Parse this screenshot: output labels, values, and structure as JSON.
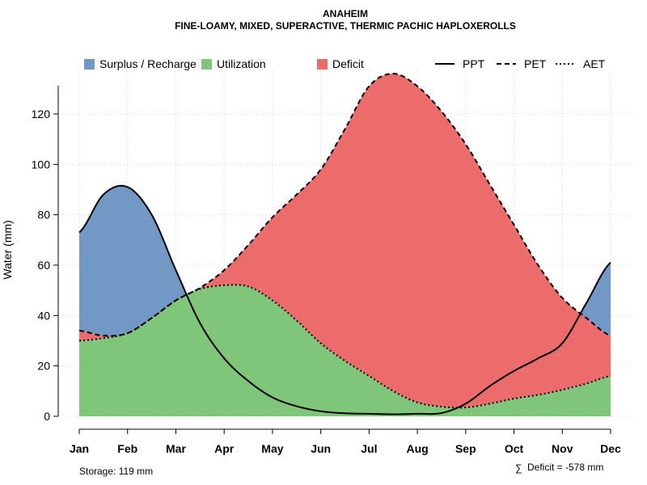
{
  "chart_data": {
    "type": "area",
    "title": "ANAHEIM",
    "subtitle": "FINE-LOAMY, MIXED, SUPERACTIVE, THERMIC PACHIC HAPLOXEROLLS",
    "ylabel": "Water (mm)",
    "xlabel": "",
    "ylim": [
      0,
      137
    ],
    "yticks": [
      0,
      20,
      40,
      60,
      80,
      100,
      120
    ],
    "categories": [
      "Jan",
      "Feb",
      "Mar",
      "Apr",
      "May",
      "Jun",
      "Jul",
      "Aug",
      "Sep",
      "Oct",
      "Nov",
      "Dec"
    ],
    "grid": true,
    "legend": [
      {
        "key": "surplus",
        "label": "Surplus / Recharge",
        "kind": "fill",
        "color": "#7299C6"
      },
      {
        "key": "utilization",
        "label": "Utilization",
        "kind": "fill",
        "color": "#7FC57A"
      },
      {
        "key": "deficit",
        "label": "Deficit",
        "kind": "fill",
        "color": "#EC6B6B"
      },
      {
        "key": "ppt",
        "label": "PPT",
        "kind": "line",
        "dash": "solid"
      },
      {
        "key": "pet",
        "label": "PET",
        "kind": "line",
        "dash": "dashed"
      },
      {
        "key": "aet",
        "label": "AET",
        "kind": "line",
        "dash": "dotted"
      }
    ],
    "series": [
      {
        "name": "PPT",
        "key": "ppt",
        "x": [
          1,
          1.5,
          2,
          2.5,
          3,
          3.5,
          4,
          4.5,
          5,
          5.5,
          6,
          6.5,
          7,
          7.5,
          8,
          8.5,
          9,
          9.5,
          10,
          10.5,
          11,
          11.5,
          12
        ],
        "values": [
          73,
          88,
          91,
          80,
          58,
          37,
          23,
          14,
          7.5,
          4,
          2,
          1.2,
          1,
          0.8,
          1,
          1.3,
          5,
          12,
          18,
          23,
          29,
          45,
          61
        ]
      },
      {
        "name": "PET",
        "key": "pet",
        "x": [
          1,
          1.5,
          2,
          2.5,
          3,
          3.5,
          4,
          4.5,
          5,
          5.5,
          6,
          6.5,
          7,
          7.5,
          8,
          8.5,
          9,
          9.5,
          10,
          10.5,
          11,
          11.5,
          12
        ],
        "values": [
          34,
          32,
          33,
          39,
          46,
          51,
          58,
          68,
          79,
          88,
          98,
          114,
          131,
          136,
          131,
          121,
          108,
          92,
          76,
          60,
          47,
          39,
          32
        ]
      },
      {
        "name": "AET",
        "key": "aet",
        "x": [
          1,
          1.5,
          2,
          2.5,
          3,
          3.5,
          4,
          4.5,
          5,
          5.5,
          6,
          6.5,
          7,
          7.5,
          8,
          8.5,
          9,
          9.5,
          10,
          10.5,
          11,
          11.5,
          12
        ],
        "values": [
          30,
          31,
          33,
          39,
          46,
          50.5,
          52,
          51.5,
          46,
          38,
          29,
          22,
          16,
          10,
          5.5,
          3.8,
          3.5,
          5,
          7,
          8.5,
          10.5,
          13,
          16
        ]
      }
    ],
    "annotations": {
      "storage": "Storage: 119 mm",
      "deficit_symbol": "∑",
      "deficit_text": "Deficit = -578 mm"
    }
  }
}
